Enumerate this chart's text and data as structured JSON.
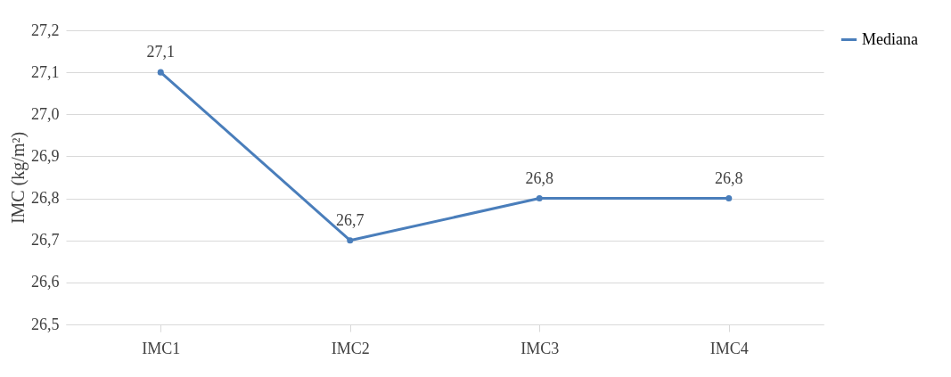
{
  "chart_data": {
    "type": "line",
    "ylabel": "IMC (kg/m²)",
    "categories": [
      "IMC1",
      "IMC2",
      "IMC3",
      "IMC4"
    ],
    "series": [
      {
        "name": "Mediana",
        "color": "#4a7ebb",
        "values": [
          27.1,
          26.7,
          26.8,
          26.8
        ],
        "value_labels": [
          "27,1",
          "26,7",
          "26,8",
          "26,8"
        ]
      }
    ],
    "ylim": [
      26.5,
      27.2
    ],
    "yticks": [
      {
        "value": 26.5,
        "label": "26,5"
      },
      {
        "value": 26.6,
        "label": "26,6"
      },
      {
        "value": 26.7,
        "label": "26,7"
      },
      {
        "value": 26.8,
        "label": "26,8"
      },
      {
        "value": 26.9,
        "label": "26,9"
      },
      {
        "value": 27.0,
        "label": "27,0"
      },
      {
        "value": 27.1,
        "label": "27,1"
      },
      {
        "value": 27.2,
        "label": "27,2"
      }
    ],
    "grid": "y",
    "legend": "right",
    "marker": "circle",
    "line_style": "solid"
  }
}
